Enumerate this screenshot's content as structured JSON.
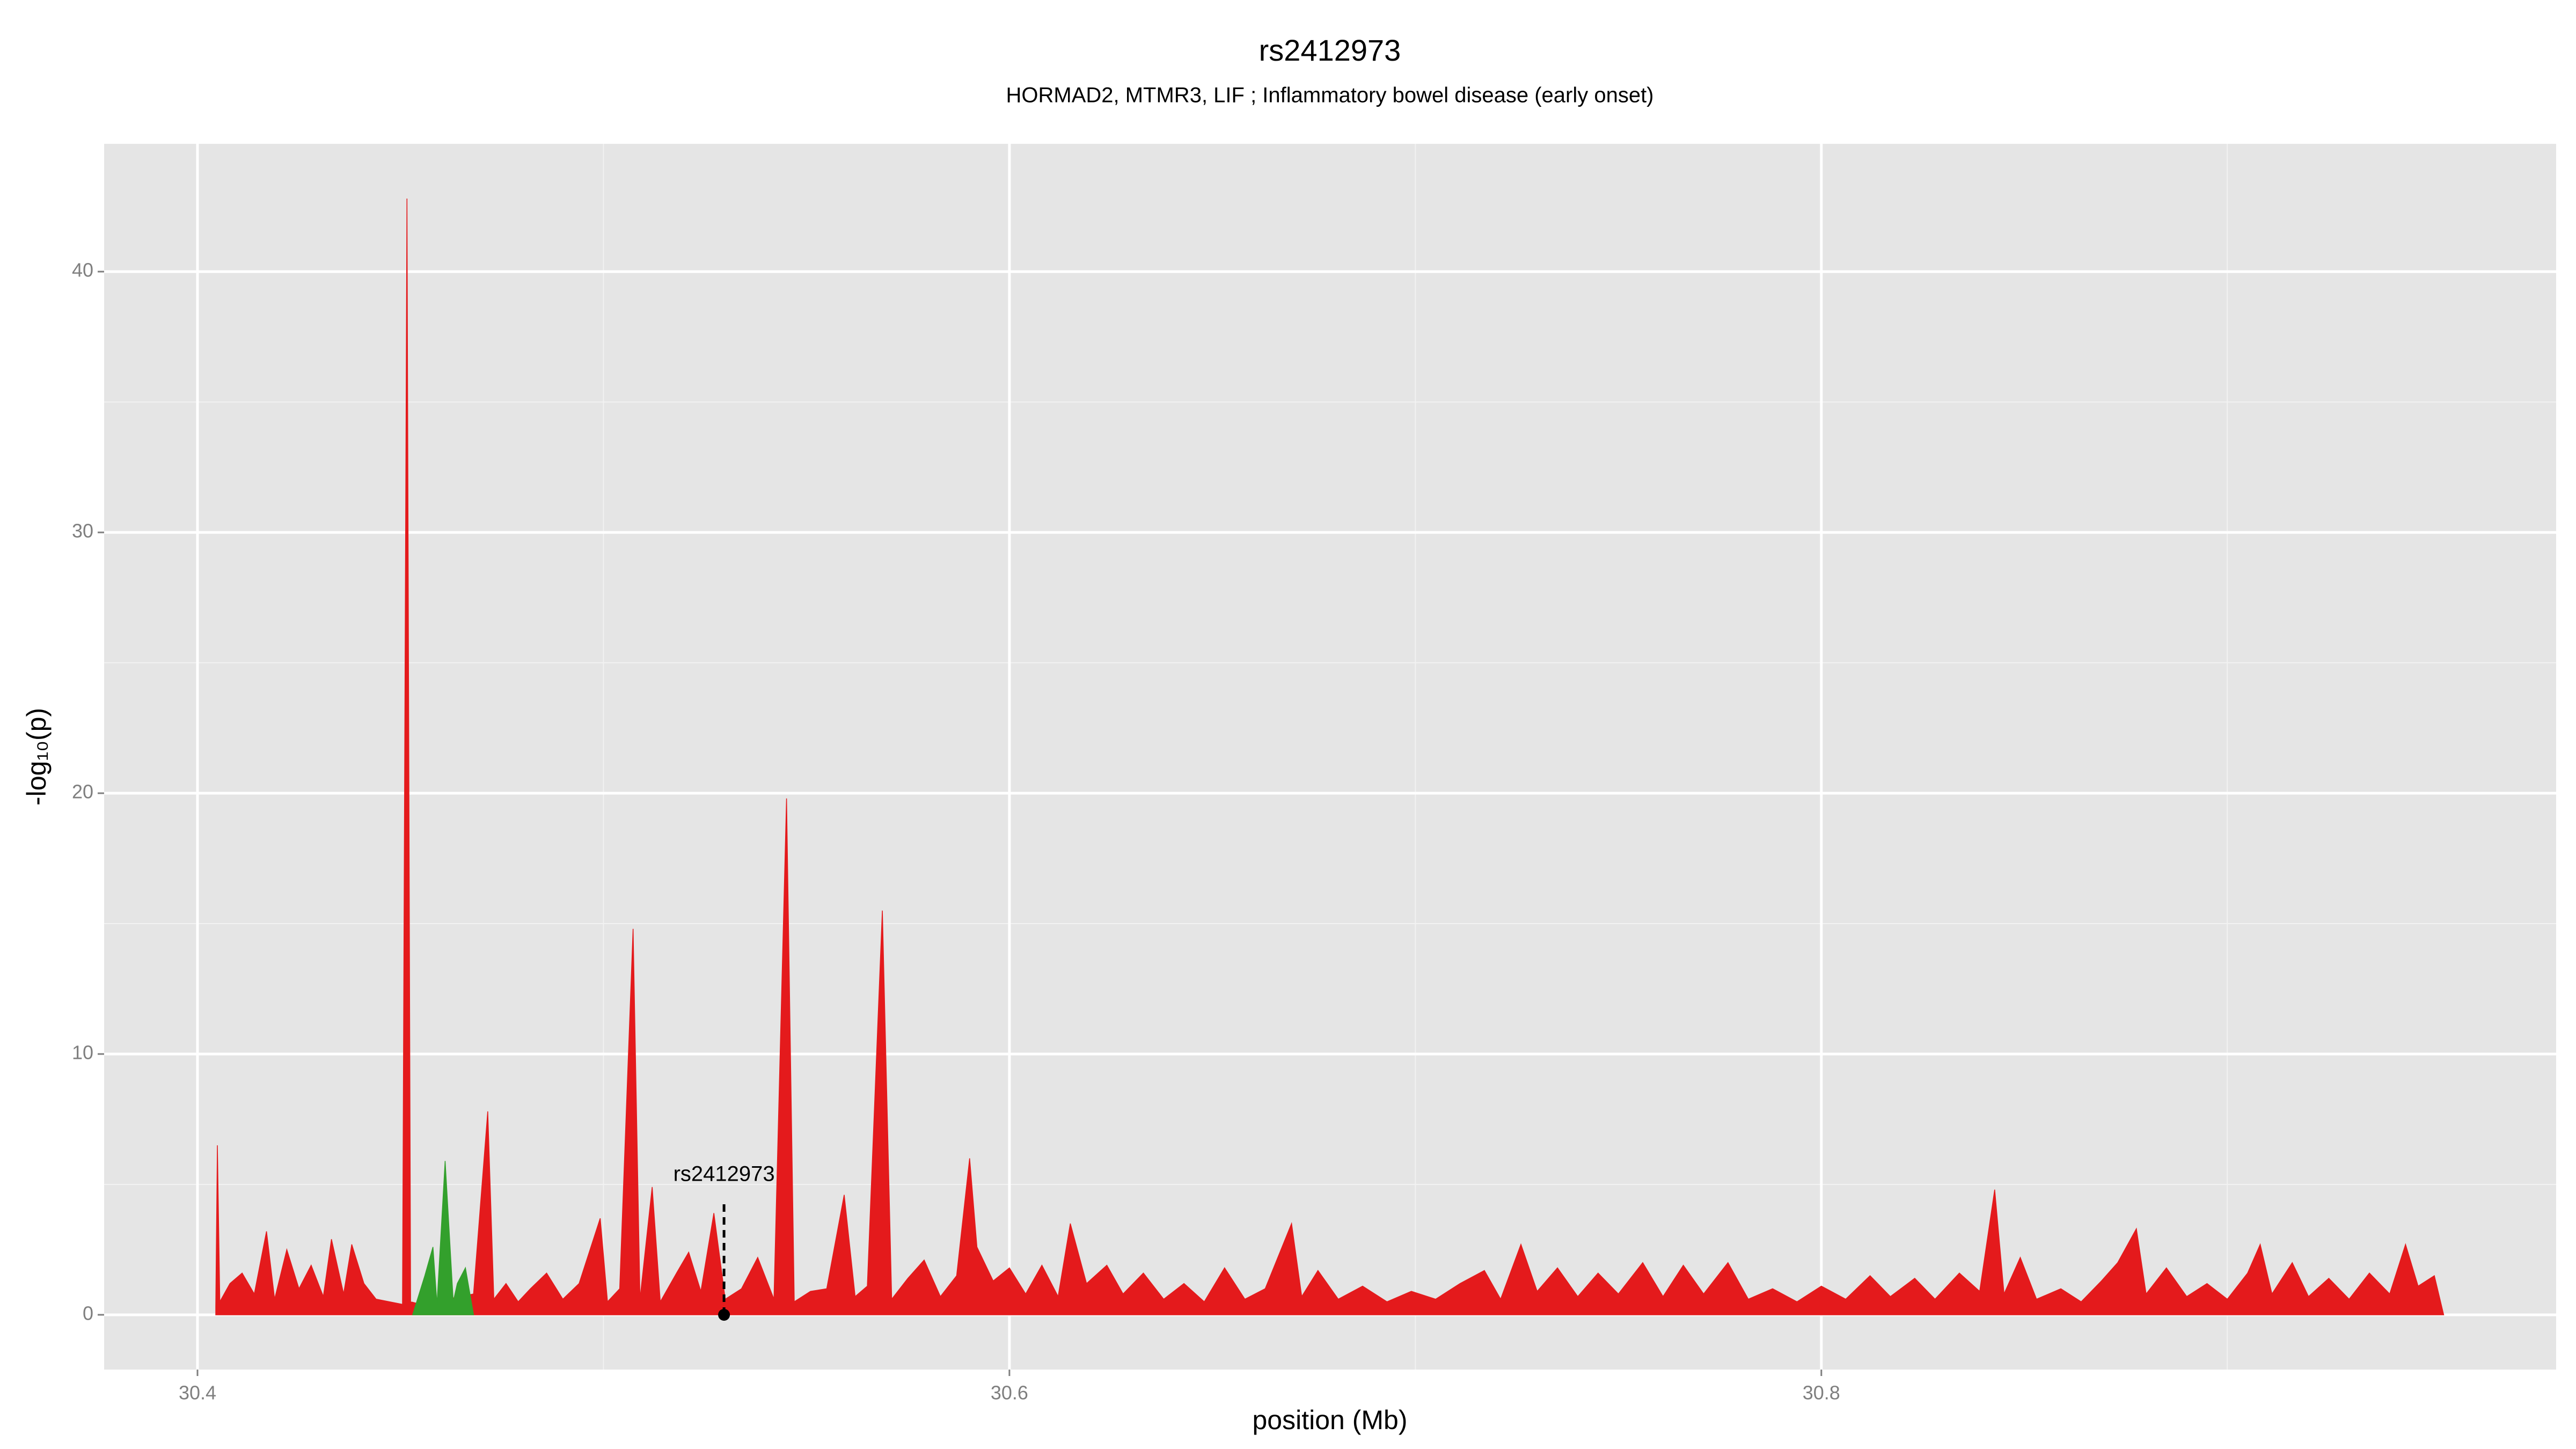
{
  "chart_data": {
    "type": "area",
    "title": "rs2412973",
    "subtitle": "HORMAD2, MTMR3, LIF ; Inflammatory bowel disease (early onset)",
    "x_label": "position (Mb)",
    "y_label": "-log₁₀(p)",
    "xlim": [
      30.377,
      30.981
    ],
    "xticks": [
      30.4,
      30.6,
      30.8
    ],
    "ylim": [
      -2.1,
      44.9
    ],
    "yticks": [
      0,
      10,
      20,
      30,
      40
    ],
    "grid": true,
    "annotation": {
      "label": "rs2412973",
      "x": 30.5297,
      "y": 0
    },
    "series": [
      {
        "color": "#e41a1c",
        "x": [
          30.4045,
          30.4049,
          30.4055,
          30.408,
          30.411,
          30.414,
          30.417,
          30.419,
          30.422,
          30.425,
          30.428,
          30.431,
          30.433,
          30.436,
          30.438,
          30.441,
          30.444,
          30.4505,
          30.4516,
          30.4525,
          30.455,
          30.468,
          30.4715,
          30.473,
          30.476,
          30.479,
          30.482,
          30.486,
          30.49,
          30.494,
          30.4992,
          30.501,
          30.504,
          30.5073,
          30.509,
          30.512,
          30.514,
          30.518,
          30.521,
          30.524,
          30.5272,
          30.53,
          30.534,
          30.538,
          30.542,
          30.5451,
          30.547,
          30.551,
          30.555,
          30.5593,
          30.562,
          30.565,
          30.5687,
          30.571,
          30.575,
          30.579,
          30.583,
          30.587,
          30.5902,
          30.592,
          30.596,
          30.6,
          30.604,
          30.608,
          30.612,
          30.615,
          30.619,
          30.624,
          30.628,
          30.633,
          30.638,
          30.643,
          30.648,
          30.653,
          30.658,
          30.663,
          30.6695,
          30.672,
          30.676,
          30.681,
          30.687,
          30.693,
          30.699,
          30.705,
          30.711,
          30.717,
          30.721,
          30.726,
          30.73,
          30.735,
          30.74,
          30.745,
          30.75,
          30.756,
          30.761,
          30.766,
          30.771,
          30.777,
          30.782,
          30.788,
          30.794,
          30.8,
          30.806,
          30.812,
          30.817,
          30.823,
          30.828,
          30.834,
          30.839,
          30.8427,
          30.845,
          30.849,
          30.853,
          30.859,
          30.864,
          30.869,
          30.873,
          30.8776,
          30.88,
          30.885,
          30.89,
          30.895,
          30.9,
          30.905,
          30.9081,
          30.911,
          30.916,
          30.92,
          30.925,
          30.93,
          30.935,
          30.94,
          30.9439,
          30.947,
          30.951,
          30.9533
        ],
        "values": [
          0.3,
          6.5,
          0.5,
          1.2,
          1.6,
          0.8,
          3.2,
          0.6,
          2.5,
          1.0,
          1.9,
          0.7,
          2.9,
          0.8,
          2.7,
          1.2,
          0.6,
          0.4,
          42.8,
          0.5,
          0.4,
          0.8,
          7.8,
          0.6,
          1.2,
          0.5,
          1.0,
          1.6,
          0.6,
          1.2,
          3.7,
          0.5,
          1.0,
          14.8,
          0.6,
          4.9,
          0.5,
          1.6,
          2.4,
          0.9,
          3.9,
          0.6,
          1.0,
          2.2,
          0.6,
          19.8,
          0.5,
          0.9,
          1.0,
          4.6,
          0.7,
          1.1,
          15.5,
          0.6,
          1.4,
          2.1,
          0.7,
          1.5,
          6.0,
          2.6,
          1.3,
          1.8,
          0.8,
          1.9,
          0.7,
          3.5,
          1.2,
          1.9,
          0.8,
          1.6,
          0.6,
          1.2,
          0.5,
          1.8,
          0.6,
          1.0,
          3.5,
          0.7,
          1.7,
          0.6,
          1.1,
          0.5,
          0.9,
          0.6,
          1.2,
          1.7,
          0.6,
          2.7,
          0.9,
          1.8,
          0.7,
          1.6,
          0.8,
          2.0,
          0.7,
          1.9,
          0.8,
          2.0,
          0.6,
          1.0,
          0.5,
          1.1,
          0.6,
          1.5,
          0.7,
          1.4,
          0.6,
          1.6,
          0.9,
          4.8,
          0.8,
          2.2,
          0.6,
          1.0,
          0.5,
          1.3,
          2.0,
          3.3,
          0.8,
          1.8,
          0.7,
          1.2,
          0.6,
          1.6,
          2.7,
          0.8,
          2.0,
          0.7,
          1.4,
          0.6,
          1.6,
          0.8,
          2.7,
          1.1,
          1.5,
          0
        ]
      },
      {
        "color": "#33a02c",
        "x": [
          30.453,
          30.456,
          30.458,
          30.459,
          30.461,
          30.463,
          30.464,
          30.466,
          30.468
        ],
        "values": [
          0,
          1.5,
          2.6,
          0.4,
          5.9,
          0.5,
          1.2,
          1.8,
          0
        ]
      }
    ]
  }
}
